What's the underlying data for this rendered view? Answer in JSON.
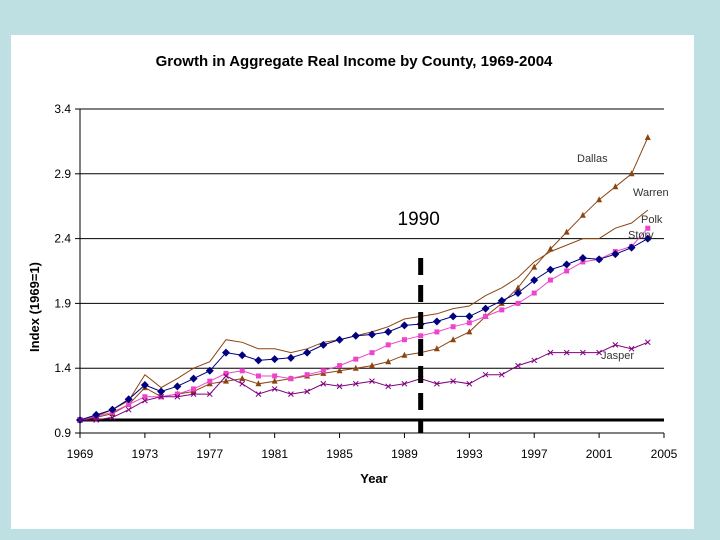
{
  "chart_data": {
    "type": "line",
    "title": "Growth in Aggregate Real Income by County, 1969-2004",
    "xlabel": "Year",
    "ylabel": "Index (1969=1)",
    "xlim": [
      1969,
      2005
    ],
    "ylim": [
      0.9,
      3.4
    ],
    "x_ticks": [
      "1969",
      "1973",
      "1977",
      "1981",
      "1985",
      "1989",
      "1993",
      "1997",
      "2001",
      "2005"
    ],
    "y_ticks": [
      "0.9",
      "1.4",
      "1.9",
      "2.4",
      "2.9",
      "3.4"
    ],
    "grid": true,
    "reference_line": {
      "y": 1.0
    },
    "annotation": {
      "label": "1990",
      "x": 1990
    },
    "x": [
      1969,
      1970,
      1971,
      1972,
      1973,
      1974,
      1975,
      1976,
      1977,
      1978,
      1979,
      1980,
      1981,
      1982,
      1983,
      1984,
      1985,
      1986,
      1987,
      1988,
      1989,
      1990,
      1991,
      1992,
      1993,
      1994,
      1995,
      1996,
      1997,
      1998,
      1999,
      2000,
      2001,
      2002,
      2003,
      2004
    ],
    "series": [
      {
        "name": "Dallas",
        "label": "Dallas",
        "color": "#8B4513",
        "marker": "triangle",
        "values": [
          1.0,
          1.02,
          1.05,
          1.12,
          1.25,
          1.18,
          1.2,
          1.22,
          1.28,
          1.3,
          1.32,
          1.28,
          1.3,
          1.32,
          1.34,
          1.36,
          1.38,
          1.4,
          1.42,
          1.45,
          1.5,
          1.52,
          1.55,
          1.62,
          1.68,
          1.8,
          1.9,
          2.02,
          2.18,
          2.32,
          2.45,
          2.58,
          2.7,
          2.8,
          2.9,
          3.18
        ]
      },
      {
        "name": "Warren",
        "label": "Warren",
        "color": "#8B4513",
        "marker": "none",
        "values": [
          1.0,
          1.03,
          1.08,
          1.15,
          1.35,
          1.25,
          1.32,
          1.4,
          1.45,
          1.62,
          1.6,
          1.55,
          1.55,
          1.52,
          1.55,
          1.6,
          1.62,
          1.65,
          1.68,
          1.72,
          1.78,
          1.8,
          1.82,
          1.86,
          1.88,
          1.96,
          2.02,
          2.1,
          2.22,
          2.3,
          2.35,
          2.4,
          2.4,
          2.48,
          2.52,
          2.62
        ]
      },
      {
        "name": "Polk",
        "label": "Polk",
        "color": "#ee44cc",
        "marker": "square",
        "values": [
          1.0,
          1.03,
          1.06,
          1.12,
          1.18,
          1.18,
          1.2,
          1.24,
          1.3,
          1.36,
          1.38,
          1.34,
          1.34,
          1.32,
          1.35,
          1.38,
          1.42,
          1.47,
          1.52,
          1.58,
          1.62,
          1.65,
          1.68,
          1.72,
          1.75,
          1.8,
          1.85,
          1.9,
          1.98,
          2.08,
          2.15,
          2.22,
          2.24,
          2.3,
          2.34,
          2.48
        ]
      },
      {
        "name": "Story",
        "label": "Story",
        "color": "#000080",
        "marker": "diamond",
        "values": [
          1.0,
          1.04,
          1.08,
          1.16,
          1.27,
          1.22,
          1.26,
          1.32,
          1.38,
          1.52,
          1.5,
          1.46,
          1.47,
          1.48,
          1.52,
          1.58,
          1.62,
          1.65,
          1.66,
          1.68,
          1.73,
          1.74,
          1.76,
          1.8,
          1.8,
          1.86,
          1.92,
          1.98,
          2.08,
          2.16,
          2.2,
          2.25,
          2.24,
          2.28,
          2.33,
          2.4
        ]
      },
      {
        "name": "Jasper",
        "label": "Jasper",
        "color": "#800080",
        "marker": "x",
        "values": [
          1.0,
          1.0,
          1.02,
          1.08,
          1.15,
          1.18,
          1.18,
          1.2,
          1.2,
          1.34,
          1.28,
          1.2,
          1.24,
          1.2,
          1.22,
          1.28,
          1.26,
          1.28,
          1.3,
          1.26,
          1.28,
          1.32,
          1.28,
          1.3,
          1.28,
          1.35,
          1.35,
          1.42,
          1.46,
          1.52,
          1.52,
          1.52,
          1.52,
          1.58,
          1.55,
          1.6
        ]
      }
    ]
  }
}
